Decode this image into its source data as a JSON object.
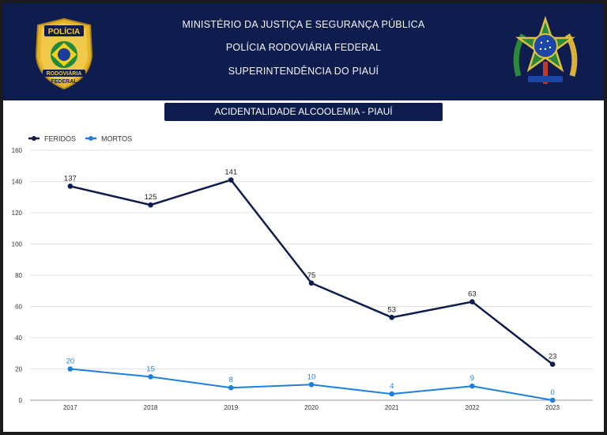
{
  "header": {
    "line1": "MINISTÉRIO DA JUSTIÇA E SEGURANÇA PÚBLICA",
    "line2": "POLÍCIA RODOVIÁRIA FEDERAL",
    "line3": "SUPERINTENDÊNCIA DO PIAUÍ",
    "badge_top": "POLÍCIA",
    "badge_mid": "RODOVIÁRIA",
    "badge_bottom": "FEDERAL"
  },
  "colors": {
    "header_bg": "#0f1d4e",
    "feridos": "#0f1d4e",
    "mortos": "#1e7fe0",
    "badge_gold": "#e4b52a"
  },
  "chart_data": {
    "type": "line",
    "title": "ACIDENTALIDADE  ALCOOLEMIA - PIAUÍ",
    "categories": [
      "2017",
      "2018",
      "2019",
      "2020",
      "2021",
      "2022",
      "2023"
    ],
    "series": [
      {
        "name": "FERIDOS",
        "values": [
          137,
          125,
          141,
          75,
          53,
          63,
          23
        ]
      },
      {
        "name": "MORTOS",
        "values": [
          20,
          15,
          8,
          10,
          4,
          9,
          0
        ]
      }
    ],
    "yticks": [
      "0",
      "20",
      "40",
      "60",
      "80",
      "100",
      "120",
      "140",
      "160"
    ],
    "ylim": [
      0,
      160
    ],
    "xlabel": "",
    "ylabel": "",
    "grid": true,
    "legend": "top-left"
  }
}
